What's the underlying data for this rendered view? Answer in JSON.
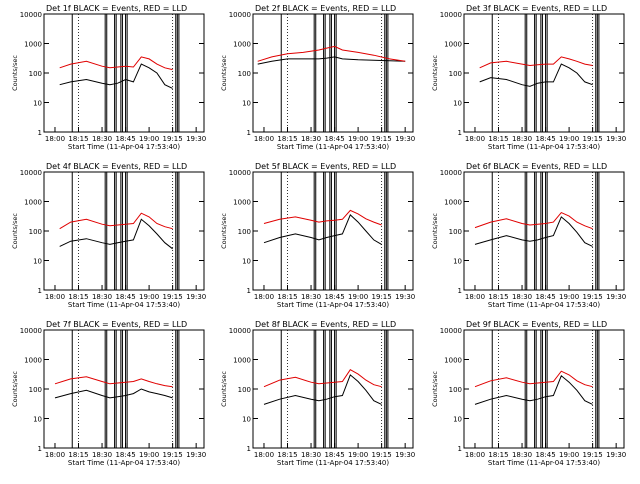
{
  "figure": {
    "xlabel": "Start Time (11-Apr-04 17:53:40)",
    "ylabel": "Counts/sec",
    "x_tick_labels": [
      "18:00",
      "18:15",
      "18:30",
      "18:45",
      "19:00",
      "19:15",
      "19:30"
    ],
    "y_tick_labels": [
      "1",
      "10",
      "100",
      "1000",
      "10000"
    ],
    "colors": {
      "events": "#000000",
      "lld": "#e00000",
      "axes": "#000000",
      "background": "#ffffff"
    }
  },
  "chart_data": [
    {
      "type": "line",
      "title": "Det 1f BLACK = Events, RED = LLD",
      "xlabel": "Start Time (11-Apr-04 17:53:40)",
      "ylabel": "Counts/sec",
      "y_scale": "log",
      "ylim": [
        1,
        10000
      ],
      "xlim": [
        "17:53",
        "19:35"
      ],
      "x_ticks": [
        "18:00",
        "18:15",
        "18:30",
        "18:45",
        "19:00",
        "19:15",
        "19:30"
      ],
      "vertical_lines": [
        "18:11",
        "18:32",
        "18:33",
        "18:38",
        "18:39",
        "18:42",
        "18:43",
        "18:45",
        "18:46",
        "19:17",
        "19:18",
        "19:19"
      ],
      "x": [
        "18:03",
        "18:10",
        "18:20",
        "18:30",
        "18:35",
        "18:40",
        "18:45",
        "18:50",
        "18:55",
        "19:00",
        "19:05",
        "19:10",
        "19:15"
      ],
      "series": [
        {
          "name": "BLACK = Events",
          "values": [
            40,
            50,
            60,
            45,
            40,
            45,
            60,
            50,
            200,
            150,
            100,
            40,
            30
          ]
        },
        {
          "name": "RED = LLD",
          "values": [
            150,
            200,
            250,
            170,
            150,
            160,
            170,
            160,
            350,
            300,
            200,
            150,
            130
          ]
        }
      ]
    },
    {
      "type": "line",
      "title": "Det 2f BLACK = Events, RED = LLD",
      "xlabel": "Start Time (11-Apr-04 17:53:40)",
      "ylabel": "Counts/sec",
      "y_scale": "log",
      "ylim": [
        1,
        10000
      ],
      "xlim": [
        "17:53",
        "19:35"
      ],
      "x_ticks": [
        "18:00",
        "18:15",
        "18:30",
        "18:45",
        "19:00",
        "19:15",
        "19:30"
      ],
      "vertical_lines": [
        "18:11",
        "18:32",
        "18:33",
        "18:38",
        "18:39",
        "18:42",
        "18:43",
        "18:45",
        "18:46",
        "19:17",
        "19:18",
        "19:19"
      ],
      "x": [
        "17:56",
        "18:05",
        "18:15",
        "18:25",
        "18:35",
        "18:40",
        "18:45",
        "18:50",
        "19:00",
        "19:10",
        "19:20",
        "19:30"
      ],
      "series": [
        {
          "name": "BLACK = Events",
          "values": [
            200,
            250,
            300,
            300,
            300,
            320,
            350,
            300,
            280,
            270,
            260,
            250
          ]
        },
        {
          "name": "RED = LLD",
          "values": [
            250,
            350,
            450,
            500,
            600,
            700,
            800,
            600,
            500,
            400,
            300,
            250
          ]
        }
      ]
    },
    {
      "type": "line",
      "title": "Det 3f BLACK = Events, RED = LLD",
      "xlabel": "Start Time (11-Apr-04 17:53:40)",
      "ylabel": "Counts/sec",
      "y_scale": "log",
      "ylim": [
        1,
        10000
      ],
      "xlim": [
        "17:53",
        "19:35"
      ],
      "x_ticks": [
        "18:00",
        "18:15",
        "18:30",
        "18:45",
        "19:00",
        "19:15",
        "19:30"
      ],
      "vertical_lines": [
        "18:11",
        "18:32",
        "18:33",
        "18:38",
        "18:39",
        "18:42",
        "18:43",
        "18:45",
        "18:46",
        "19:17",
        "19:18",
        "19:19"
      ],
      "x": [
        "18:03",
        "18:10",
        "18:20",
        "18:30",
        "18:35",
        "18:40",
        "18:45",
        "18:50",
        "18:55",
        "19:00",
        "19:05",
        "19:10",
        "19:15"
      ],
      "series": [
        {
          "name": "BLACK = Events",
          "values": [
            50,
            70,
            60,
            40,
            35,
            45,
            50,
            50,
            200,
            150,
            100,
            50,
            40
          ]
        },
        {
          "name": "RED = LLD",
          "values": [
            150,
            220,
            250,
            200,
            180,
            190,
            200,
            200,
            350,
            300,
            250,
            200,
            180
          ]
        }
      ]
    },
    {
      "type": "line",
      "title": "Det 4f BLACK = Events, RED = LLD",
      "xlabel": "Start Time (11-Apr-04 17:53:40)",
      "ylabel": "Counts/sec",
      "y_scale": "log",
      "ylim": [
        1,
        10000
      ],
      "xlim": [
        "17:53",
        "19:35"
      ],
      "x_ticks": [
        "18:00",
        "18:15",
        "18:30",
        "18:45",
        "19:00",
        "19:15",
        "19:30"
      ],
      "vertical_lines": [
        "18:11",
        "18:32",
        "18:33",
        "18:38",
        "18:39",
        "18:42",
        "18:43",
        "18:45",
        "18:46",
        "19:17",
        "19:18",
        "19:19"
      ],
      "x": [
        "18:03",
        "18:10",
        "18:20",
        "18:30",
        "18:35",
        "18:40",
        "18:45",
        "18:50",
        "18:55",
        "19:00",
        "19:05",
        "19:10",
        "19:15"
      ],
      "series": [
        {
          "name": "BLACK = Events",
          "values": [
            30,
            45,
            55,
            40,
            35,
            40,
            45,
            50,
            250,
            150,
            80,
            40,
            25
          ]
        },
        {
          "name": "RED = LLD",
          "values": [
            120,
            200,
            250,
            170,
            150,
            160,
            170,
            180,
            400,
            300,
            180,
            140,
            120
          ]
        }
      ]
    },
    {
      "type": "line",
      "title": "Det 5f BLACK = Events, RED = LLD",
      "xlabel": "Start Time (11-Apr-04 17:53:40)",
      "ylabel": "Counts/sec",
      "y_scale": "log",
      "ylim": [
        1,
        10000
      ],
      "xlim": [
        "17:53",
        "19:35"
      ],
      "x_ticks": [
        "18:00",
        "18:15",
        "18:30",
        "18:45",
        "19:00",
        "19:15",
        "19:30"
      ],
      "vertical_lines": [
        "18:11",
        "18:32",
        "18:33",
        "18:38",
        "18:39",
        "18:42",
        "18:43",
        "18:45",
        "18:46",
        "19:17",
        "19:18",
        "19:19"
      ],
      "x": [
        "18:00",
        "18:10",
        "18:20",
        "18:30",
        "18:35",
        "18:40",
        "18:45",
        "18:50",
        "18:55",
        "19:00",
        "19:05",
        "19:10",
        "19:15"
      ],
      "series": [
        {
          "name": "BLACK = Events",
          "values": [
            40,
            60,
            80,
            60,
            50,
            60,
            70,
            80,
            350,
            200,
            100,
            50,
            35
          ]
        },
        {
          "name": "RED = LLD",
          "values": [
            180,
            250,
            300,
            230,
            200,
            220,
            230,
            250,
            500,
            380,
            260,
            200,
            160
          ]
        }
      ]
    },
    {
      "type": "line",
      "title": "Det 6f BLACK = Events, RED = LLD",
      "xlabel": "Start Time (11-Apr-04 17:53:40)",
      "ylabel": "Counts/sec",
      "y_scale": "log",
      "ylim": [
        1,
        10000
      ],
      "xlim": [
        "17:53",
        "19:35"
      ],
      "x_ticks": [
        "18:00",
        "18:15",
        "18:30",
        "18:45",
        "19:00",
        "19:15",
        "19:30"
      ],
      "vertical_lines": [
        "18:11",
        "18:32",
        "18:33",
        "18:38",
        "18:39",
        "18:42",
        "18:43",
        "18:45",
        "18:46",
        "19:17",
        "19:18",
        "19:19"
      ],
      "x": [
        "18:00",
        "18:10",
        "18:20",
        "18:30",
        "18:35",
        "18:40",
        "18:45",
        "18:50",
        "18:55",
        "19:00",
        "19:05",
        "19:10",
        "19:15"
      ],
      "series": [
        {
          "name": "BLACK = Events",
          "values": [
            35,
            50,
            70,
            50,
            45,
            50,
            60,
            70,
            300,
            180,
            90,
            40,
            30
          ]
        },
        {
          "name": "RED = LLD",
          "values": [
            130,
            200,
            260,
            180,
            160,
            170,
            180,
            200,
            420,
            320,
            200,
            150,
            120
          ]
        }
      ]
    },
    {
      "type": "line",
      "title": "Det 7f BLACK = Events, RED = LLD",
      "xlabel": "Start Time (11-Apr-04 17:53:40)",
      "ylabel": "Counts/sec",
      "y_scale": "log",
      "ylim": [
        1,
        10000
      ],
      "xlim": [
        "17:53",
        "19:35"
      ],
      "x_ticks": [
        "18:00",
        "18:15",
        "18:30",
        "18:45",
        "19:00",
        "19:15",
        "19:30"
      ],
      "vertical_lines": [
        "18:11",
        "18:32",
        "18:33",
        "18:38",
        "18:39",
        "18:42",
        "18:43",
        "18:45",
        "18:46",
        "19:17",
        "19:18",
        "19:19"
      ],
      "x": [
        "18:00",
        "18:10",
        "18:20",
        "18:30",
        "18:35",
        "18:40",
        "18:45",
        "18:50",
        "18:55",
        "19:00",
        "19:05",
        "19:10",
        "19:15"
      ],
      "series": [
        {
          "name": "BLACK = Events",
          "values": [
            50,
            70,
            90,
            60,
            50,
            55,
            60,
            70,
            100,
            80,
            70,
            60,
            50
          ]
        },
        {
          "name": "RED = LLD",
          "values": [
            150,
            220,
            260,
            180,
            150,
            160,
            170,
            180,
            220,
            180,
            150,
            130,
            120
          ]
        }
      ]
    },
    {
      "type": "line",
      "title": "Det 8f BLACK = Events, RED = LLD",
      "xlabel": "Start Time (11-Apr-04 17:53:40)",
      "ylabel": "Counts/sec",
      "y_scale": "log",
      "ylim": [
        1,
        10000
      ],
      "xlim": [
        "17:53",
        "19:35"
      ],
      "x_ticks": [
        "18:00",
        "18:15",
        "18:30",
        "18:45",
        "19:00",
        "19:15",
        "19:30"
      ],
      "vertical_lines": [
        "18:11",
        "18:32",
        "18:33",
        "18:38",
        "18:39",
        "18:42",
        "18:43",
        "18:45",
        "18:46",
        "19:17",
        "19:18",
        "19:19"
      ],
      "x": [
        "18:00",
        "18:10",
        "18:20",
        "18:30",
        "18:35",
        "18:40",
        "18:45",
        "18:50",
        "18:55",
        "19:00",
        "19:05",
        "19:10",
        "19:15"
      ],
      "series": [
        {
          "name": "BLACK = Events",
          "values": [
            30,
            45,
            60,
            45,
            40,
            45,
            55,
            60,
            300,
            180,
            90,
            40,
            30
          ]
        },
        {
          "name": "RED = LLD",
          "values": [
            120,
            200,
            250,
            170,
            150,
            160,
            170,
            180,
            450,
            320,
            200,
            140,
            120
          ]
        }
      ]
    },
    {
      "type": "line",
      "title": "Det 9f BLACK = Events, RED = LLD",
      "xlabel": "Start Time (11-Apr-04 17:53:40)",
      "ylabel": "Counts/sec",
      "y_scale": "log",
      "ylim": [
        1,
        10000
      ],
      "xlim": [
        "17:53",
        "19:35"
      ],
      "x_ticks": [
        "18:00",
        "18:15",
        "18:30",
        "18:45",
        "19:00",
        "19:15",
        "19:30"
      ],
      "vertical_lines": [
        "18:11",
        "18:32",
        "18:33",
        "18:38",
        "18:39",
        "18:42",
        "18:43",
        "18:45",
        "18:46",
        "19:17",
        "19:18",
        "19:19"
      ],
      "x": [
        "18:00",
        "18:10",
        "18:20",
        "18:30",
        "18:35",
        "18:40",
        "18:45",
        "18:50",
        "18:55",
        "19:00",
        "19:05",
        "19:10",
        "19:15"
      ],
      "series": [
        {
          "name": "BLACK = Events",
          "values": [
            30,
            45,
            60,
            45,
            40,
            45,
            55,
            60,
            280,
            170,
            90,
            40,
            30
          ]
        },
        {
          "name": "RED = LLD",
          "values": [
            120,
            190,
            240,
            170,
            150,
            160,
            170,
            180,
            400,
            300,
            190,
            140,
            120
          ]
        }
      ]
    }
  ]
}
